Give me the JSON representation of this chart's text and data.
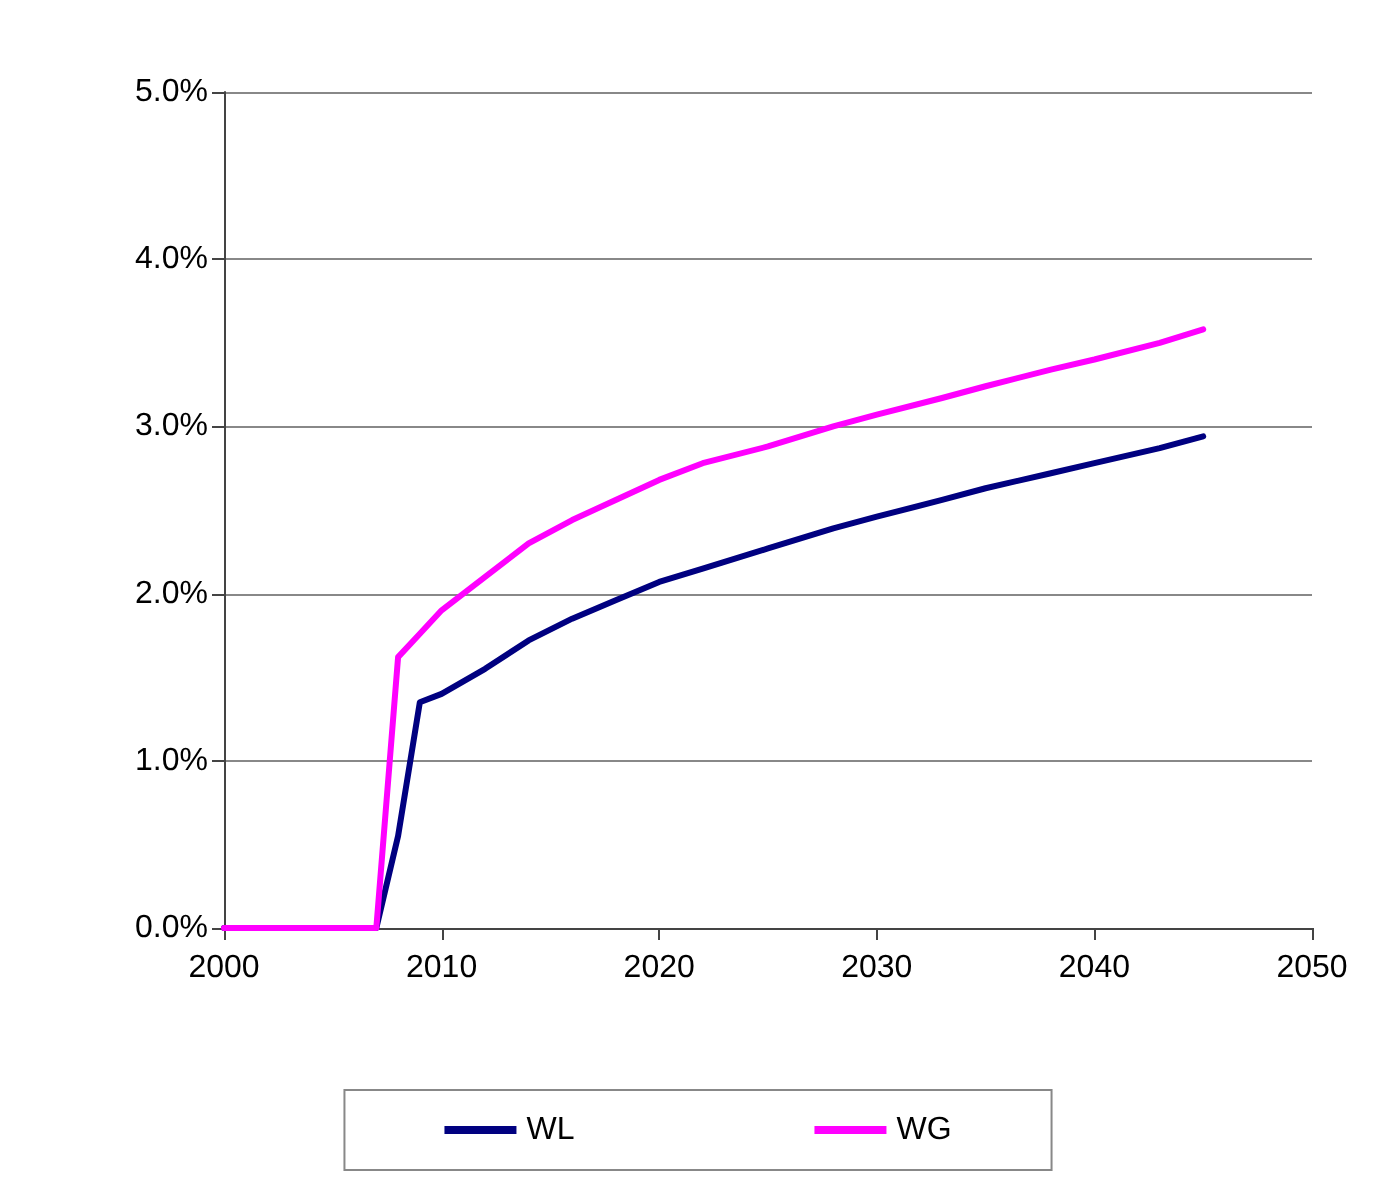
{
  "chart_data": {
    "type": "line",
    "x": [
      2000,
      2007,
      2008,
      2009,
      2010,
      2012,
      2014,
      2016,
      2018,
      2020,
      2022,
      2025,
      2028,
      2030,
      2033,
      2035,
      2038,
      2040,
      2043,
      2045
    ],
    "series": [
      {
        "name": "WL",
        "color": "#000080",
        "values": [
          0,
          0,
          0.55,
          1.35,
          1.4,
          1.55,
          1.72,
          1.85,
          1.96,
          2.07,
          2.15,
          2.27,
          2.39,
          2.46,
          2.56,
          2.63,
          2.72,
          2.78,
          2.87,
          2.94
        ]
      },
      {
        "name": "WG",
        "color": "#ff00ff",
        "values": [
          0,
          0,
          1.62,
          1.76,
          1.9,
          2.1,
          2.3,
          2.44,
          2.56,
          2.68,
          2.78,
          2.88,
          3.0,
          3.07,
          3.17,
          3.24,
          3.34,
          3.4,
          3.5,
          3.58
        ]
      }
    ],
    "xlim": [
      2000,
      2050
    ],
    "xticks": [
      2000,
      2010,
      2020,
      2030,
      2040,
      2050
    ],
    "ylim": [
      0,
      5
    ],
    "yticks": [
      {
        "value": 0,
        "label": "0.0%"
      },
      {
        "value": 1,
        "label": "1.0%"
      },
      {
        "value": 2,
        "label": "2.0%"
      },
      {
        "value": 3,
        "label": "3.0%"
      },
      {
        "value": 4,
        "label": "4.0%"
      },
      {
        "value": 5,
        "label": "5.0%"
      }
    ],
    "grid": "y",
    "legend": "bottom",
    "marker": "none",
    "line_style": "solid"
  }
}
